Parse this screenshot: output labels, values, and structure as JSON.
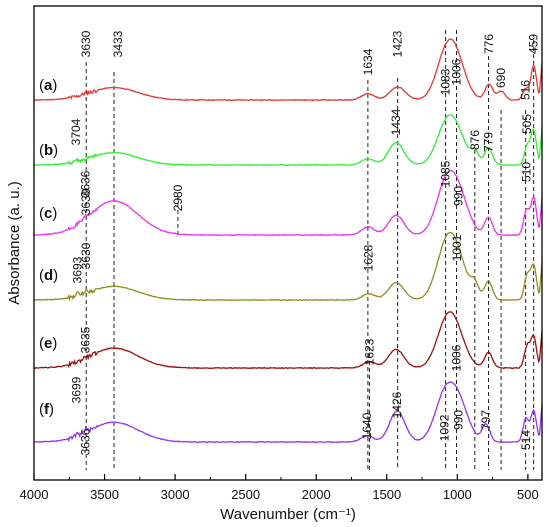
{
  "chart_data": {
    "type": "line",
    "title": "",
    "xlabel": "Wavenumber (cm⁻¹)",
    "ylabel": "Absorbance (a. u.)",
    "xlim": [
      4000,
      400
    ],
    "x_reversed": true,
    "x_ticks": [
      4000,
      3500,
      3000,
      2500,
      2000,
      1500,
      1000,
      500
    ],
    "x_tick_labels": [
      "4000",
      "3500",
      "3000",
      "2500",
      "2000",
      "1500",
      "1000",
      "500"
    ],
    "y_ticks_labeled": false,
    "grid": false,
    "legend": "none",
    "series": [
      {
        "label": "(a)",
        "color": "#e53935",
        "baseline": 0.92,
        "peaks": [
          [
            3630,
            0.02
          ],
          [
            3433,
            0.2
          ],
          [
            1634,
            0.1
          ],
          [
            1423,
            0.21
          ],
          [
            1083,
            0.62
          ],
          [
            1006,
            0.52
          ],
          [
            776,
            0.25
          ],
          [
            690,
            0.14
          ],
          [
            516,
            0.18
          ],
          [
            459,
            0.55
          ]
        ],
        "annotations": [
          {
            "label": "3630",
            "wavenumber": 3630
          },
          {
            "label": "3433",
            "wavenumber": 3433
          },
          {
            "label": "1634",
            "wavenumber": 1634
          },
          {
            "label": "1423",
            "wavenumber": 1423
          },
          {
            "label": "1083",
            "wavenumber": 1083
          },
          {
            "label": "1006",
            "wavenumber": 1006
          },
          {
            "label": "776",
            "wavenumber": 776
          },
          {
            "label": "690",
            "wavenumber": 690
          },
          {
            "label": "516",
            "wavenumber": 516
          },
          {
            "label": "459",
            "wavenumber": 459
          }
        ]
      },
      {
        "label": "(b)",
        "color": "#33ee33",
        "baseline": 0.98,
        "peaks": [
          [
            3704,
            0.03
          ],
          [
            3433,
            0.2
          ],
          [
            1634,
            0.1
          ],
          [
            1434,
            0.36
          ],
          [
            1083,
            0.52
          ],
          [
            1006,
            0.42
          ],
          [
            876,
            0.18
          ],
          [
            779,
            0.28
          ],
          [
            505,
            0.3
          ],
          [
            459,
            0.55
          ]
        ],
        "annotations": [
          {
            "label": "3704",
            "wavenumber": 3704
          },
          {
            "label": "1434",
            "wavenumber": 1434
          },
          {
            "label": "876",
            "wavenumber": 876
          },
          {
            "label": "779",
            "wavenumber": 779
          },
          {
            "label": "505",
            "wavenumber": 505
          }
        ]
      },
      {
        "label": "(c)",
        "color": "#ee33ee",
        "baseline": 0.92,
        "peaks": [
          [
            3630,
            0.03
          ],
          [
            3433,
            0.55
          ],
          [
            1634,
            0.13
          ],
          [
            1434,
            0.32
          ],
          [
            1085,
            0.72
          ],
          [
            990,
            0.58
          ],
          [
            779,
            0.28
          ],
          [
            510,
            0.4
          ],
          [
            459,
            0.6
          ]
        ],
        "annotations": [
          {
            "label": "3630",
            "wavenumber": 3630
          },
          {
            "label": "3636",
            "wavenumber": 3636
          },
          {
            "label": "2980",
            "wavenumber": 2980
          },
          {
            "label": "1085",
            "wavenumber": 1085
          },
          {
            "label": "990",
            "wavenumber": 990
          },
          {
            "label": "510",
            "wavenumber": 510
          }
        ]
      },
      {
        "label": "(d)",
        "color": "#8f8f22",
        "baseline": 0.98,
        "peaks": [
          [
            3693,
            0.04
          ],
          [
            3630,
            0.05
          ],
          [
            3433,
            0.22
          ],
          [
            1628,
            0.1
          ],
          [
            1434,
            0.28
          ],
          [
            1085,
            0.72
          ],
          [
            1001,
            0.58
          ],
          [
            876,
            0.22
          ],
          [
            779,
            0.3
          ],
          [
            505,
            0.4
          ],
          [
            459,
            0.55
          ]
        ],
        "annotations": [
          {
            "label": "3693",
            "wavenumber": 3693
          },
          {
            "label": "3630",
            "wavenumber": 3630
          },
          {
            "label": "1628",
            "wavenumber": 1628
          },
          {
            "label": "1001",
            "wavenumber": 1001
          }
        ]
      },
      {
        "label": "(e)",
        "color": "#9a1111",
        "baseline": 0.96,
        "peaks": [
          [
            3635,
            0.03
          ],
          [
            3433,
            0.32
          ],
          [
            1623,
            0.1
          ],
          [
            1434,
            0.3
          ],
          [
            1083,
            0.6
          ],
          [
            1006,
            0.45
          ],
          [
            779,
            0.25
          ],
          [
            505,
            0.35
          ],
          [
            459,
            0.5
          ]
        ],
        "annotations": [
          {
            "label": "3635",
            "wavenumber": 3635
          },
          {
            "label": "1623",
            "wavenumber": 1623
          },
          {
            "label": "1006",
            "wavenumber": 1006
          }
        ]
      },
      {
        "label": "(f)",
        "color": "#9933ee",
        "baseline": 0.96,
        "peaks": [
          [
            3699,
            0.03
          ],
          [
            3636,
            0.05
          ],
          [
            3433,
            0.32
          ],
          [
            1640,
            0.1
          ],
          [
            1426,
            0.5
          ],
          [
            1092,
            0.68
          ],
          [
            990,
            0.58
          ],
          [
            797,
            0.28
          ],
          [
            514,
            0.38
          ],
          [
            459,
            0.5
          ]
        ],
        "annotations": [
          {
            "label": "3699",
            "wavenumber": 3699
          },
          {
            "label": "3636",
            "wavenumber": 3636
          },
          {
            "label": "1640",
            "wavenumber": 1640
          },
          {
            "label": "1426",
            "wavenumber": 1426
          },
          {
            "label": "1092",
            "wavenumber": 1092
          },
          {
            "label": "990",
            "wavenumber": 990
          },
          {
            "label": "797",
            "wavenumber": 797
          },
          {
            "label": "514",
            "wavenumber": 514
          }
        ]
      }
    ],
    "reference_lines": [
      3630,
      3433,
      2980,
      1634,
      1623,
      1423,
      1083,
      1006,
      876,
      779,
      690,
      516,
      459
    ]
  }
}
